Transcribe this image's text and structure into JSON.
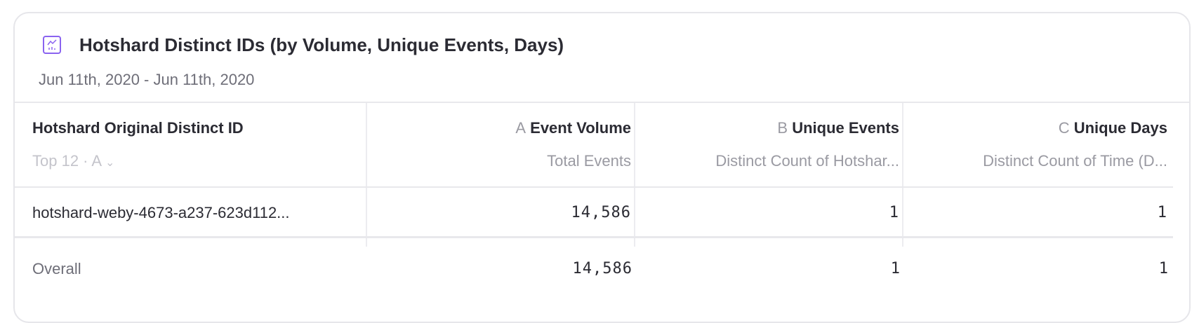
{
  "report": {
    "title": "Hotshard Distinct IDs (by Volume, Unique Events, Days)",
    "date_range": "Jun 11th, 2020 - Jun 11th, 2020",
    "icon": "line-chart-icon",
    "accent_color": "#8a63f0"
  },
  "table": {
    "group_header": {
      "label": "Hotshard Original Distinct ID",
      "sort_control": "Top 12 · A"
    },
    "columns": [
      {
        "letter": "A",
        "label": "Event Volume",
        "subtitle": "Total Events"
      },
      {
        "letter": "B",
        "label": "Unique Events",
        "subtitle": "Distinct Count of Hotshar..."
      },
      {
        "letter": "C",
        "label": "Unique Days",
        "subtitle": "Distinct Count of Time (D..."
      }
    ],
    "rows": [
      {
        "id": "hotshard-weby-4673-a237-623d112...",
        "values": [
          "14,586",
          "1",
          "1"
        ]
      }
    ],
    "overall": {
      "label": "Overall",
      "values": [
        "14,586",
        "1",
        "1"
      ]
    }
  }
}
